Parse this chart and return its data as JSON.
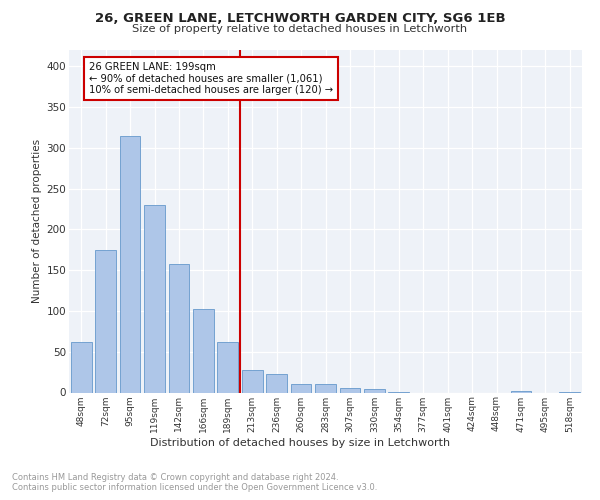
{
  "title1": "26, GREEN LANE, LETCHWORTH GARDEN CITY, SG6 1EB",
  "title2": "Size of property relative to detached houses in Letchworth",
  "xlabel": "Distribution of detached houses by size in Letchworth",
  "ylabel": "Number of detached properties",
  "categories": [
    "48sqm",
    "72sqm",
    "95sqm",
    "119sqm",
    "142sqm",
    "166sqm",
    "189sqm",
    "213sqm",
    "236sqm",
    "260sqm",
    "283sqm",
    "307sqm",
    "330sqm",
    "354sqm",
    "377sqm",
    "401sqm",
    "424sqm",
    "448sqm",
    "471sqm",
    "495sqm",
    "518sqm"
  ],
  "values": [
    62,
    175,
    315,
    230,
    158,
    103,
    62,
    28,
    23,
    10,
    11,
    6,
    4,
    1,
    0,
    0,
    0,
    0,
    2,
    0,
    1
  ],
  "bar_color": "#aec6e8",
  "bar_edge_color": "#6699cc",
  "vline_color": "#cc0000",
  "annotation_text": "26 GREEN LANE: 199sqm\n← 90% of detached houses are smaller (1,061)\n10% of semi-detached houses are larger (120) →",
  "annotation_box_color": "#ffffff",
  "annotation_box_edge": "#cc0000",
  "ylim": [
    0,
    420
  ],
  "yticks": [
    0,
    50,
    100,
    150,
    200,
    250,
    300,
    350,
    400
  ],
  "footer1": "Contains HM Land Registry data © Crown copyright and database right 2024.",
  "footer2": "Contains public sector information licensed under the Open Government Licence v3.0.",
  "plot_bg": "#eef2f8"
}
